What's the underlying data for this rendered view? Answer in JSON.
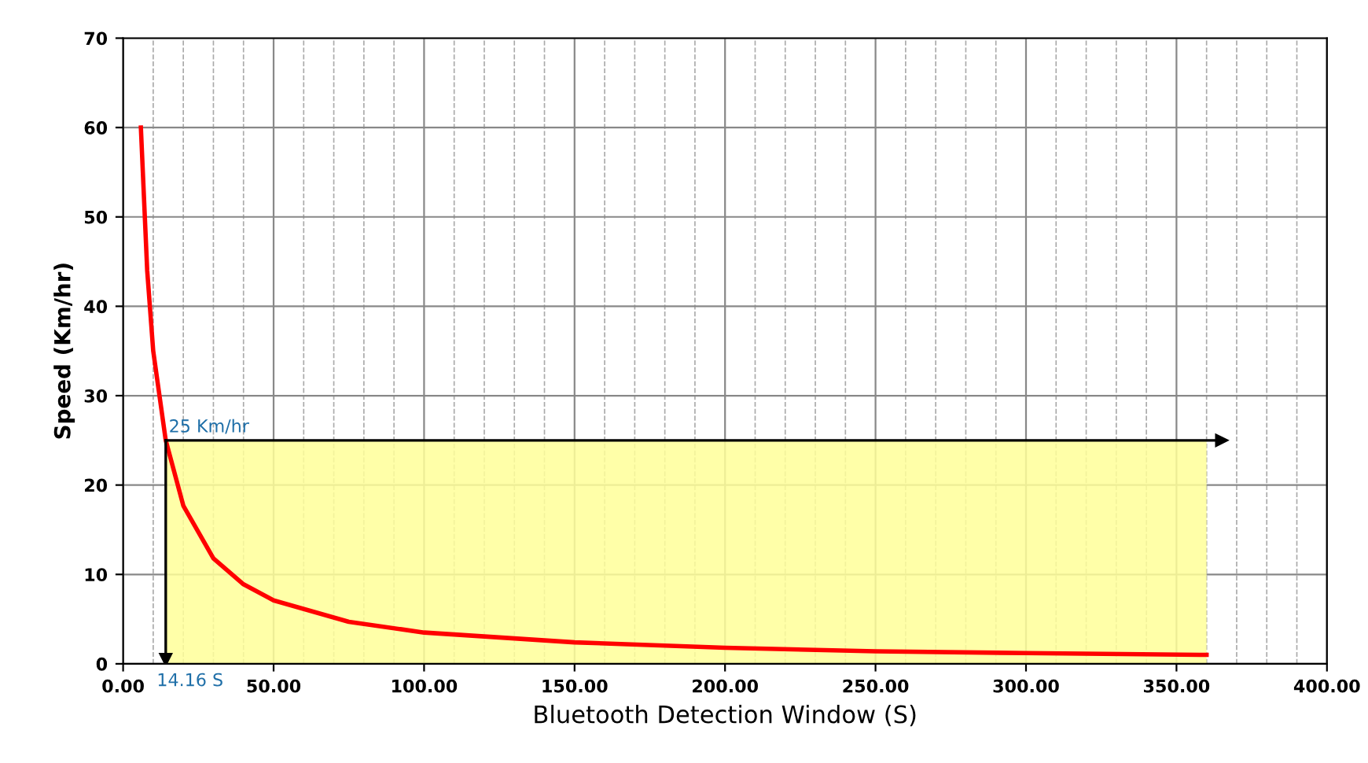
{
  "chart_data": {
    "type": "line",
    "xlabel": "Bluetooth Detection Window (S)",
    "ylabel": "Speed (Km/hr)",
    "xlim": [
      0,
      400
    ],
    "ylim": [
      0,
      70
    ],
    "xticks": [
      {
        "value": 0,
        "label": "0.00"
      },
      {
        "value": 50,
        "label": "50.00"
      },
      {
        "value": 100,
        "label": "100.00"
      },
      {
        "value": 150,
        "label": "150.00"
      },
      {
        "value": 200,
        "label": "200.00"
      },
      {
        "value": 250,
        "label": "250.00"
      },
      {
        "value": 300,
        "label": "300.00"
      },
      {
        "value": 350,
        "label": "350.00"
      },
      {
        "value": 400,
        "label": "400.00"
      }
    ],
    "yticks": [
      0,
      10,
      20,
      30,
      40,
      50,
      60,
      70
    ],
    "grid": true,
    "line_style": "solid",
    "series": [
      {
        "type": "area",
        "color": "#ffff99",
        "x": [
          14.16,
          360
        ],
        "values": [
          25,
          25
        ]
      },
      {
        "color": "#ff0000",
        "x": [
          5.9,
          8,
          10,
          14.16,
          20,
          30,
          40,
          50,
          75,
          100,
          150,
          200,
          250,
          300,
          360
        ],
        "values": [
          60,
          44,
          35,
          25,
          17.7,
          11.8,
          8.9,
          7.1,
          4.7,
          3.5,
          2.4,
          1.8,
          1.4,
          1.2,
          1.0
        ]
      }
    ],
    "ref_lines": [
      {
        "axis": "y",
        "value": 25,
        "label": "25 Km/hr"
      },
      {
        "axis": "x",
        "value": 14.16,
        "label": "14.16 S"
      }
    ]
  }
}
